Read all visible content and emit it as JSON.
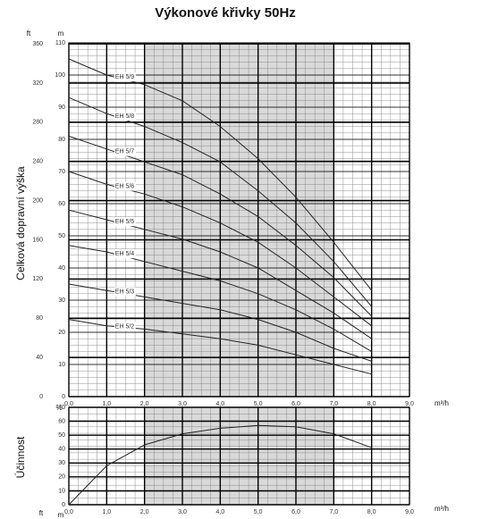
{
  "chart_data": [
    {
      "type": "line",
      "title": "Výkonové křivky 50Hz",
      "y_label": "Celková dopravní výška",
      "x_unit": "m³/h",
      "y_unit": "m",
      "y2_unit": "ft",
      "xlim": [
        0,
        9
      ],
      "xticks": [
        {
          "value": 0,
          "label": "0,0"
        },
        {
          "value": 1,
          "label": "1,0"
        },
        {
          "value": 2,
          "label": "2,0"
        },
        {
          "value": 3,
          "label": "3,0"
        },
        {
          "value": 4,
          "label": "4,0"
        },
        {
          "value": 5,
          "label": "5,0"
        },
        {
          "value": 6,
          "label": "6,0"
        },
        {
          "value": 7,
          "label": "7,0"
        },
        {
          "value": 8,
          "label": "8,0"
        },
        {
          "value": 9,
          "label": "9,0"
        }
      ],
      "ylim": [
        0,
        110
      ],
      "yticks": [
        0,
        10,
        20,
        30,
        40,
        50,
        60,
        70,
        80,
        90,
        100,
        110
      ],
      "y2lim": [
        0,
        361
      ],
      "y2ticks": [
        0,
        40,
        80,
        120,
        160,
        200,
        240,
        280,
        320,
        360
      ],
      "shaded_x": [
        2,
        7
      ],
      "x": [
        0,
        1,
        2,
        3,
        4,
        5,
        6,
        7,
        8
      ],
      "series": [
        {
          "name": "EH 5/9",
          "color": "#222",
          "values": [
            105,
            100,
            97,
            92,
            84,
            74,
            62,
            48,
            33
          ]
        },
        {
          "name": "EH 5/8",
          "color": "#222",
          "values": [
            93,
            88,
            84,
            79,
            73,
            64,
            54,
            42,
            28
          ]
        },
        {
          "name": "EH 5/7",
          "color": "#222",
          "values": [
            81,
            77,
            73,
            69,
            63,
            56,
            47,
            37,
            25
          ]
        },
        {
          "name": "EH 5/6",
          "color": "#222",
          "values": [
            70,
            66,
            63,
            59,
            54,
            48,
            40,
            31,
            22
          ]
        },
        {
          "name": "EH 5/5",
          "color": "#222",
          "values": [
            58,
            55,
            52,
            49,
            45,
            40,
            33,
            26,
            18
          ]
        },
        {
          "name": "EH 5/4",
          "color": "#222",
          "values": [
            47,
            45,
            42,
            39,
            36,
            32,
            27,
            21,
            14
          ]
        },
        {
          "name": "EH 5/3",
          "color": "#222",
          "values": [
            35,
            33,
            31,
            29,
            27,
            24,
            20,
            15,
            11
          ]
        },
        {
          "name": "EH 5/2",
          "color": "#222",
          "values": [
            24,
            22,
            21,
            19.5,
            18,
            16,
            13,
            10,
            7
          ]
        }
      ]
    },
    {
      "type": "line",
      "y_label": "Účinnost",
      "x_unit": "m³/h",
      "y_unit": "%",
      "footer_units": [
        "ft",
        "m"
      ],
      "xlim": [
        0,
        9
      ],
      "xticks": [
        {
          "value": 0,
          "label": "0,0"
        },
        {
          "value": 1,
          "label": "1,0"
        },
        {
          "value": 2,
          "label": "2,0"
        },
        {
          "value": 3,
          "label": "3,0"
        },
        {
          "value": 4,
          "label": "4,0"
        },
        {
          "value": 5,
          "label": "5,0"
        },
        {
          "value": 6,
          "label": "6,0"
        },
        {
          "value": 7,
          "label": "7,0"
        },
        {
          "value": 8,
          "label": "8,0"
        },
        {
          "value": 9,
          "label": "9,0"
        }
      ],
      "ylim": [
        0,
        70
      ],
      "yticks": [
        0,
        10,
        20,
        30,
        40,
        50,
        60,
        70
      ],
      "shaded_x": [
        2,
        7
      ],
      "x": [
        0,
        1,
        2,
        3,
        4,
        5,
        6,
        7,
        8
      ],
      "color": "#222",
      "values": [
        0,
        28,
        43,
        51,
        55,
        57,
        56,
        51,
        41
      ]
    }
  ]
}
